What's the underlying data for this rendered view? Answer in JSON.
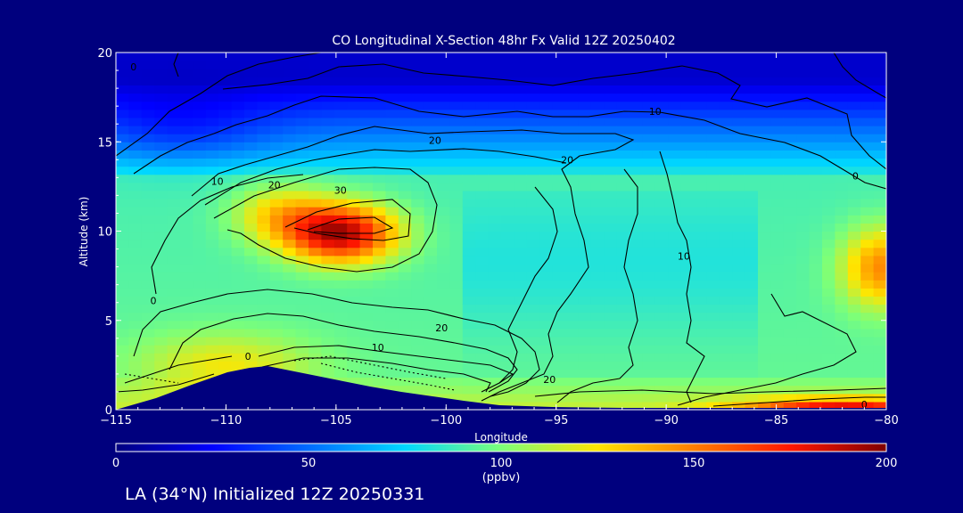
{
  "chart_data": {
    "type": "heatmap",
    "title": "CO Longitudinal X-Section 48hr  Fx Valid 12Z 20250402",
    "xlabel": "Longitude",
    "ylabel": "Altitude (km)",
    "xlim": [
      -115,
      -80
    ],
    "ylim": [
      0,
      20
    ],
    "x_ticks": [
      -115,
      -110,
      -105,
      -100,
      -95,
      -90,
      -85,
      -80
    ],
    "x_tick_labels": [
      "−115",
      "−110",
      "−105",
      "−100",
      "−95",
      "−90",
      "−85",
      "−80"
    ],
    "y_ticks": [
      0,
      5,
      10,
      15,
      20
    ],
    "y_tick_labels": [
      "0",
      "5",
      "10",
      "15",
      "20"
    ],
    "colorbar": {
      "min": 0,
      "max": 200,
      "ticks": [
        0,
        50,
        100,
        150,
        200
      ],
      "tick_labels": [
        "0",
        "50",
        "100",
        "150",
        "200"
      ],
      "units": "(ppbv)"
    },
    "contour_labels": [
      {
        "text": "0",
        "lon": -114.2,
        "alt": 19.0
      },
      {
        "text": "10",
        "lon": -90.5,
        "alt": 16.5
      },
      {
        "text": "20",
        "lon": -100.5,
        "alt": 14.9
      },
      {
        "text": "20",
        "lon": -94.5,
        "alt": 13.8
      },
      {
        "text": "10",
        "lon": -110.4,
        "alt": 12.6
      },
      {
        "text": "20",
        "lon": -107.8,
        "alt": 12.4
      },
      {
        "text": "30",
        "lon": -104.8,
        "alt": 12.1
      },
      {
        "text": "0",
        "lon": -81.4,
        "alt": 12.9
      },
      {
        "text": "10",
        "lon": -89.2,
        "alt": 8.4
      },
      {
        "text": "0",
        "lon": -113.3,
        "alt": 5.9
      },
      {
        "text": "20",
        "lon": -100.2,
        "alt": 4.4
      },
      {
        "text": "10",
        "lon": -103.1,
        "alt": 3.3
      },
      {
        "text": "0",
        "lon": -109.0,
        "alt": 2.8
      },
      {
        "text": "20",
        "lon": -95.3,
        "alt": 1.5
      },
      {
        "text": "0",
        "lon": -81.0,
        "alt": 0.1
      }
    ],
    "co_field_features": [
      {
        "feature": "upper-level maximum",
        "lon": -104.8,
        "alt": 9.9,
        "value": 190
      },
      {
        "feature": "eastern mid-level maximum",
        "lon": -80.2,
        "alt": 8.0,
        "value": 148
      },
      {
        "feature": "eastern surface maximum",
        "lon": -82.0,
        "alt": 0.2,
        "value": 175
      },
      {
        "feature": "upper stratosphere background",
        "lon": -97.0,
        "alt": 18.5,
        "value": 15
      }
    ]
  },
  "footer": {
    "location_label": "LA (34°N) Initialized 12Z 20250331"
  },
  "colors": {
    "background": "#00007e",
    "text": "#ffffff",
    "contour": "#000000",
    "terrain": "#00007e"
  }
}
